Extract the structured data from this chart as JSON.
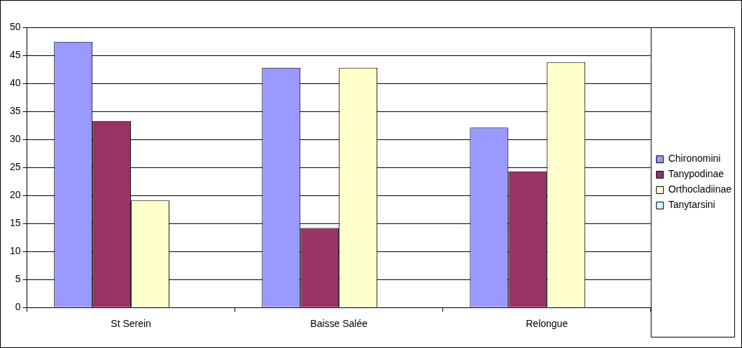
{
  "chart_data": {
    "type": "bar",
    "categories": [
      "St Serein",
      "Baisse Salée",
      "Relongue"
    ],
    "series": [
      {
        "name": "Chironomini",
        "color": "#9999ff",
        "values": [
          47.4,
          42.8,
          32.1
        ]
      },
      {
        "name": "Tanypodinae",
        "color": "#993366",
        "values": [
          33.3,
          14.2,
          24.3
        ]
      },
      {
        "name": "Orthocladiinae",
        "color": "#ffffcc",
        "values": [
          19.1,
          42.8,
          43.8
        ]
      },
      {
        "name": "Tanytarsini",
        "color": "#ccffff",
        "values": [
          0,
          0,
          0
        ]
      }
    ],
    "ylim": [
      0,
      50
    ],
    "yticks": [
      0,
      5,
      10,
      15,
      20,
      25,
      30,
      35,
      40,
      45,
      50
    ],
    "grid": "y",
    "legend": "right"
  }
}
